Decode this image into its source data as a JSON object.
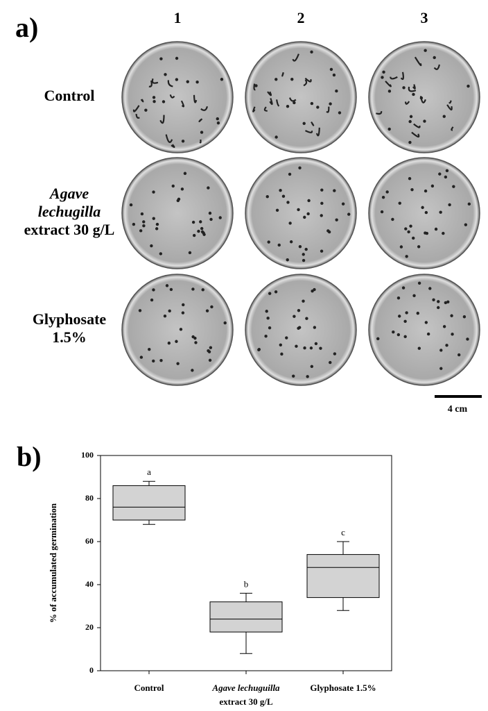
{
  "panel_a": {
    "label": "a)",
    "columns": [
      "1",
      "2",
      "3"
    ],
    "rows": [
      {
        "label": [
          "Control"
        ]
      },
      {
        "label": [
          "Agave",
          "lechugilla",
          "extract 30 g/L"
        ]
      },
      {
        "label": [
          "Glyphosate",
          "1.5%"
        ]
      }
    ],
    "scale_bar": "4 cm"
  },
  "chart_data": {
    "type": "box",
    "panel_label": "b)",
    "y_label": "% of accumulated germination",
    "categories": [
      [
        "Control"
      ],
      [
        "Agave lechuguilla",
        "extract 30 g/L"
      ],
      [
        "Glyphosate 1.5%"
      ]
    ],
    "boxes": [
      {
        "whisker_low": 68,
        "q1": 70,
        "median": 76,
        "q3": 86,
        "whisker_high": 88,
        "letter": "a"
      },
      {
        "whisker_low": 8,
        "q1": 18,
        "median": 24,
        "q3": 32,
        "whisker_high": 36,
        "letter": "b"
      },
      {
        "whisker_low": 28,
        "q1": 34,
        "median": 48,
        "q3": 54,
        "whisker_high": 60,
        "letter": "c"
      }
    ],
    "color": "#d3d3d3",
    "ylim": [
      0,
      100
    ],
    "yticks": [
      0,
      20,
      40,
      60,
      80,
      100
    ]
  }
}
